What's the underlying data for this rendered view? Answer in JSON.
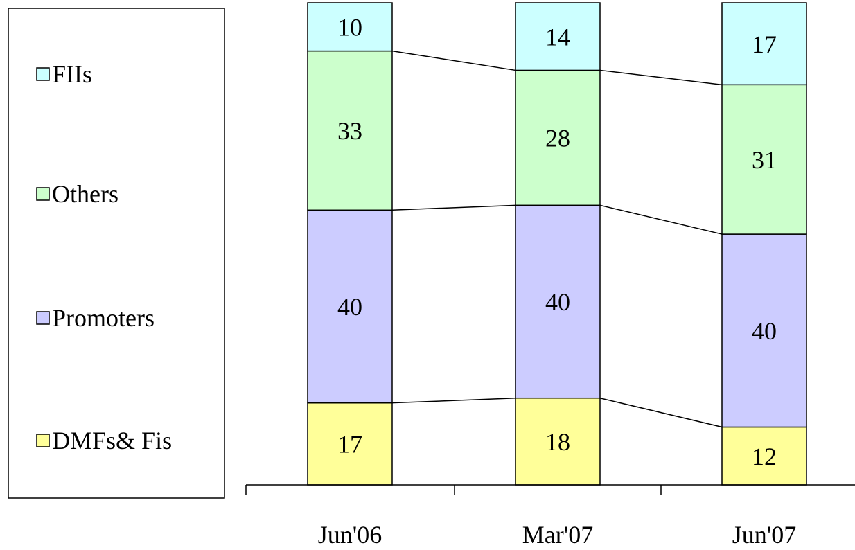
{
  "chart_data": {
    "type": "bar",
    "stacked": true,
    "categories": [
      "Jun'06",
      "Mar'07",
      "Jun'07"
    ],
    "series": [
      {
        "name": "DMFs& Fis",
        "values": [
          17,
          18,
          12
        ],
        "color": "#ffff99"
      },
      {
        "name": "Promoters",
        "values": [
          40,
          40,
          40
        ],
        "color": "#ccccff"
      },
      {
        "name": "Others",
        "values": [
          33,
          28,
          31
        ],
        "color": "#ccffcc"
      },
      {
        "name": "FIIs",
        "values": [
          10,
          14,
          17
        ],
        "color": "#ccffff"
      }
    ],
    "series_lines": true,
    "legend_position": "left",
    "legend_order": [
      "FIIs",
      "Others",
      "Promoters",
      "DMFs& Fis"
    ],
    "title": "",
    "xlabel": "",
    "ylabel": "",
    "ylim": [
      0,
      100
    ]
  }
}
